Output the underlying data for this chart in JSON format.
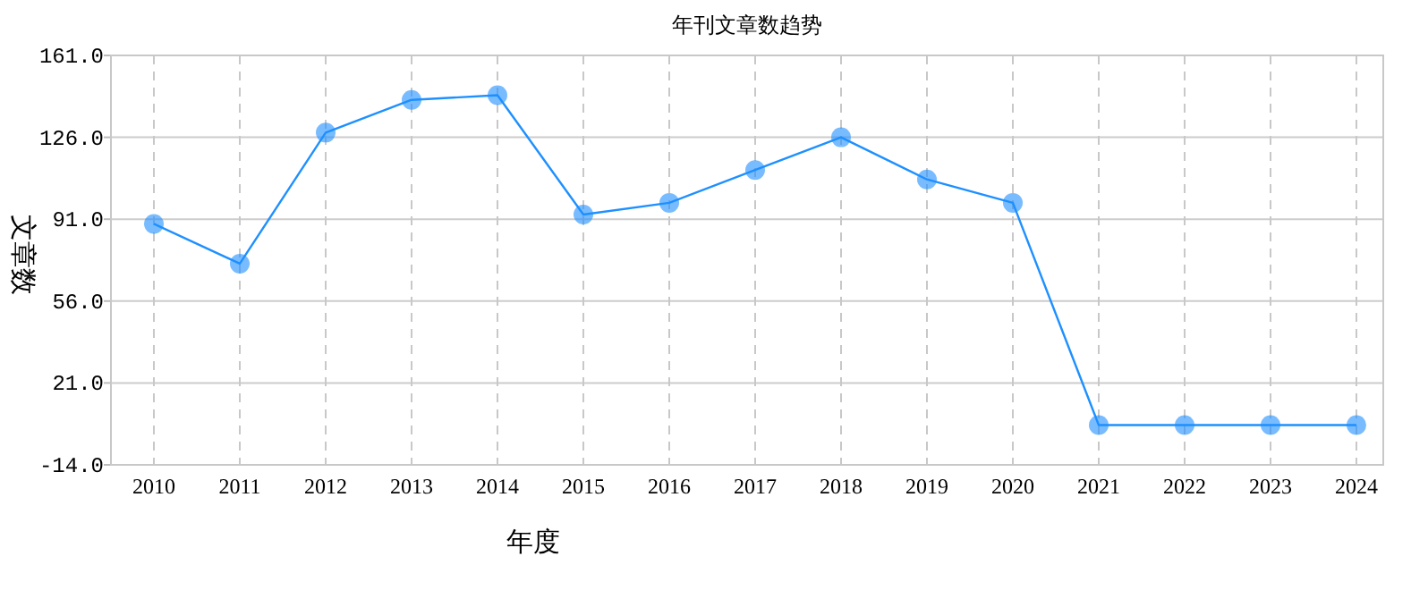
{
  "chart_data": {
    "type": "line",
    "title": "年刊文章数趋势",
    "xlabel": "年度",
    "ylabel": "文章数",
    "categories": [
      "2010",
      "2011",
      "2012",
      "2013",
      "2014",
      "2015",
      "2016",
      "2017",
      "2018",
      "2019",
      "2020",
      "2021",
      "2022",
      "2023",
      "2024"
    ],
    "series": [
      {
        "color": "#1e90ff",
        "values": [
          89,
          72,
          128,
          142,
          144,
          93,
          98,
          112,
          126,
          108,
          98,
          3,
          3,
          3,
          3
        ]
      }
    ],
    "ylim": [
      -14,
      161
    ],
    "yticks": [
      {
        "value": -14,
        "label": "-14.0"
      },
      {
        "value": 21,
        "label": "21.0"
      },
      {
        "value": 56,
        "label": "56.0"
      },
      {
        "value": 91,
        "label": "91.0"
      },
      {
        "value": 126,
        "label": "126.0"
      },
      {
        "value": 161,
        "label": "161.0"
      }
    ],
    "grid": true,
    "marker": "circle",
    "line_style": "solid"
  }
}
